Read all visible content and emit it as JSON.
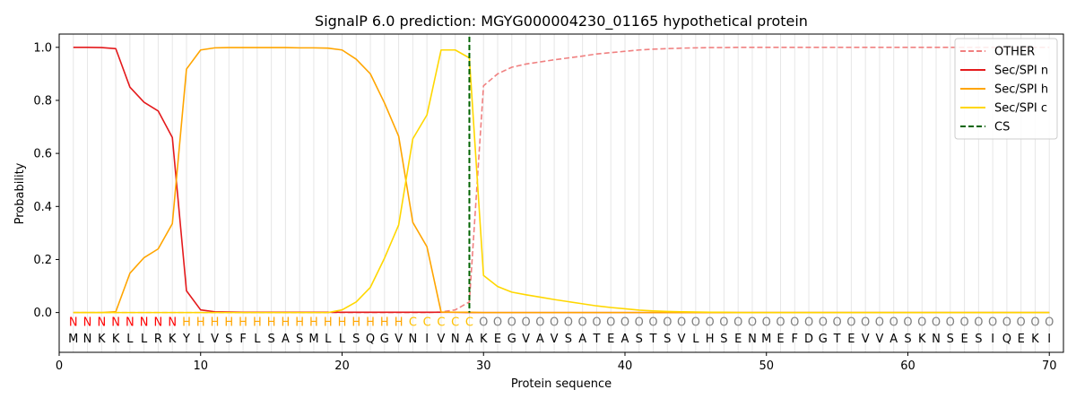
{
  "chart_data": {
    "type": "line",
    "title": "SignalP 6.0 prediction: MGYG000004230_01165 hypothetical protein",
    "xlabel": "Protein sequence",
    "ylabel": "Probability",
    "xlim": [
      0,
      71
    ],
    "ylim": [
      -0.15,
      1.05
    ],
    "x_ticks": [
      0,
      10,
      20,
      30,
      40,
      50,
      60,
      70
    ],
    "y_ticks": [
      0.0,
      0.2,
      0.4,
      0.6,
      0.8,
      1.0
    ],
    "grid": "vertical lines at each residue",
    "legend_position": "top-right",
    "x": [
      1,
      2,
      3,
      4,
      5,
      6,
      7,
      8,
      9,
      10,
      11,
      12,
      13,
      14,
      15,
      16,
      17,
      18,
      19,
      20,
      21,
      22,
      23,
      24,
      25,
      26,
      27,
      28,
      29,
      30,
      31,
      32,
      33,
      34,
      35,
      36,
      37,
      38,
      39,
      40,
      41,
      42,
      43,
      44,
      45,
      46,
      47,
      48,
      49,
      50,
      51,
      52,
      53,
      54,
      55,
      56,
      57,
      58,
      59,
      60,
      61,
      62,
      63,
      64,
      65,
      66,
      67,
      68,
      69,
      70
    ],
    "sequence": [
      "M",
      "N",
      "K",
      "K",
      "L",
      "L",
      "R",
      "K",
      "Y",
      "L",
      "V",
      "S",
      "F",
      "L",
      "S",
      "A",
      "S",
      "M",
      "L",
      "L",
      "S",
      "Q",
      "G",
      "V",
      "N",
      "I",
      "V",
      "N",
      "A",
      "K",
      "E",
      "G",
      "V",
      "A",
      "V",
      "S",
      "A",
      "T",
      "E",
      "A",
      "S",
      "T",
      "S",
      "V",
      "L",
      "H",
      "S",
      "E",
      "N",
      "M",
      "E",
      "F",
      "D",
      "G",
      "T",
      "E",
      "V",
      "V",
      "A",
      "S",
      "K",
      "N",
      "S",
      "E",
      "S",
      "I",
      "Q",
      "E",
      "K",
      "I"
    ],
    "labels": [
      "N",
      "N",
      "N",
      "N",
      "N",
      "N",
      "N",
      "N",
      "H",
      "H",
      "H",
      "H",
      "H",
      "H",
      "H",
      "H",
      "H",
      "H",
      "H",
      "H",
      "H",
      "H",
      "H",
      "H",
      "C",
      "C",
      "C",
      "C",
      "C",
      "O",
      "O",
      "O",
      "O",
      "O",
      "O",
      "O",
      "O",
      "O",
      "O",
      "O",
      "O",
      "O",
      "O",
      "O",
      "O",
      "O",
      "O",
      "O",
      "O",
      "O",
      "O",
      "O",
      "O",
      "O",
      "O",
      "O",
      "O",
      "O",
      "O",
      "O",
      "O",
      "O",
      "O",
      "O",
      "O",
      "O",
      "O",
      "O",
      "O",
      "O"
    ],
    "label_colors": {
      "N": "#ff0000",
      "H": "#ffa500",
      "C": "#ffc000",
      "O": "#808080"
    },
    "cleavage_site": 29,
    "series": [
      {
        "name": "OTHER",
        "color": "#f08080",
        "style": "dashed",
        "values": [
          0,
          0,
          0,
          0,
          0,
          0,
          0,
          0,
          0,
          0,
          0,
          0,
          0,
          0,
          0,
          0,
          0,
          0,
          0,
          0,
          0,
          0,
          0,
          0,
          0,
          0,
          0.002,
          0.01,
          0.04,
          0.855,
          0.9,
          0.925,
          0.937,
          0.945,
          0.953,
          0.96,
          0.967,
          0.975,
          0.98,
          0.985,
          0.99,
          0.993,
          0.995,
          0.997,
          0.998,
          0.999,
          0.999,
          1,
          1,
          1,
          1,
          1,
          1,
          1,
          1,
          1,
          1,
          1,
          1,
          1,
          1,
          1,
          1,
          1,
          1,
          1,
          1,
          1,
          1,
          1
        ]
      },
      {
        "name": "Sec/SPI n",
        "color": "#e41a1c",
        "style": "solid",
        "values": [
          1.0,
          1.0,
          0.999,
          0.995,
          0.85,
          0.793,
          0.76,
          0.66,
          0.082,
          0.01,
          0.003,
          0.002,
          0.001,
          0.001,
          0.001,
          0.001,
          0.001,
          0.001,
          0.001,
          0.001,
          0.001,
          0.001,
          0.001,
          0.001,
          0.001,
          0.001,
          0.001,
          0.001,
          0,
          0,
          0,
          0,
          0,
          0,
          0,
          0,
          0,
          0,
          0,
          0,
          0,
          0,
          0,
          0,
          0,
          0,
          0,
          0,
          0,
          0,
          0,
          0,
          0,
          0,
          0,
          0,
          0,
          0,
          0,
          0,
          0,
          0,
          0,
          0,
          0,
          0,
          0,
          0,
          0,
          0
        ]
      },
      {
        "name": "Sec/SPI h",
        "color": "#ffa500",
        "style": "solid",
        "values": [
          0,
          0,
          0,
          0.003,
          0.148,
          0.207,
          0.24,
          0.335,
          0.918,
          0.99,
          0.998,
          0.999,
          0.999,
          0.999,
          0.999,
          0.999,
          0.998,
          0.998,
          0.997,
          0.99,
          0.955,
          0.9,
          0.79,
          0.665,
          0.34,
          0.248,
          0.002,
          0.001,
          0.001,
          0,
          0,
          0,
          0,
          0,
          0,
          0,
          0,
          0,
          0,
          0,
          0,
          0,
          0,
          0,
          0,
          0,
          0,
          0,
          0,
          0,
          0,
          0,
          0,
          0,
          0,
          0,
          0,
          0,
          0,
          0,
          0,
          0,
          0,
          0,
          0,
          0,
          0,
          0,
          0,
          0
        ]
      },
      {
        "name": "Sec/SPI c",
        "color": "#ffd700",
        "style": "solid",
        "values": [
          0,
          0,
          0,
          0,
          0,
          0,
          0,
          0,
          0,
          0,
          0,
          0,
          0,
          0,
          0,
          0,
          0,
          0,
          0,
          0.01,
          0.04,
          0.095,
          0.205,
          0.33,
          0.655,
          0.745,
          0.99,
          0.99,
          0.96,
          0.14,
          0.098,
          0.077,
          0.067,
          0.058,
          0.049,
          0.041,
          0.033,
          0.025,
          0.019,
          0.014,
          0.009,
          0.006,
          0.004,
          0.003,
          0.002,
          0.001,
          0.001,
          0,
          0,
          0,
          0,
          0,
          0,
          0,
          0,
          0,
          0,
          0,
          0,
          0,
          0,
          0,
          0,
          0,
          0,
          0,
          0,
          0,
          0,
          0
        ]
      },
      {
        "name": "CS",
        "color": "#006400",
        "style": "dashed",
        "vertical_at": 29
      }
    ]
  }
}
